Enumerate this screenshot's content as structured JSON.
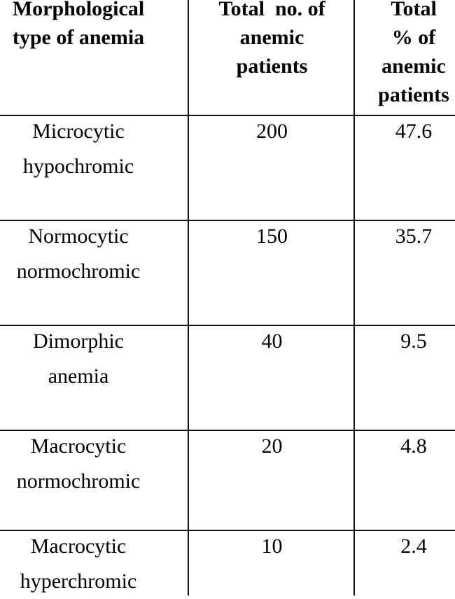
{
  "table": {
    "headers": [
      [
        "Morphological",
        "type of anemia"
      ],
      [
        "Total  no. of",
        "anemic",
        "patients"
      ],
      [
        "Total",
        "% of",
        "anemic",
        "patients"
      ]
    ],
    "rows": [
      {
        "type": [
          "Microcytic",
          "hypochromic"
        ],
        "count": "200",
        "percent": "47.6"
      },
      {
        "type": [
          "Normocytic",
          "normochromic"
        ],
        "count": "150",
        "percent": "35.7"
      },
      {
        "type": [
          "Dimorphic",
          "anemia"
        ],
        "count": "40",
        "percent": "9.5"
      },
      {
        "type": [
          "Macrocytic",
          "normochromic"
        ],
        "count": "20",
        "percent": "4.8"
      },
      {
        "type": [
          "Macrocytic",
          "hyperchromic"
        ],
        "count": "10",
        "percent": "2.4"
      }
    ]
  }
}
